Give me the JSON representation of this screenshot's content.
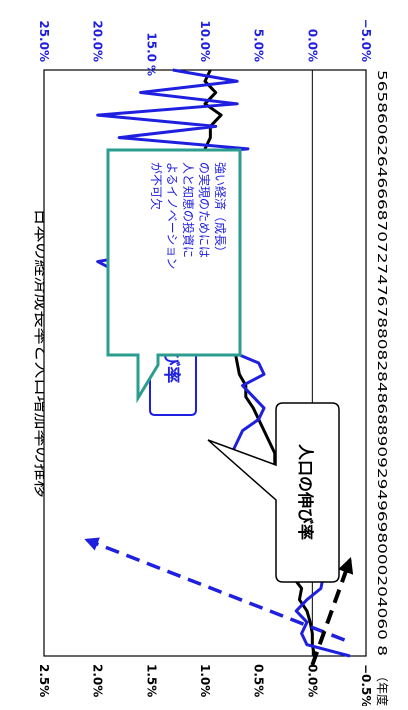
{
  "chart_data": {
    "type": "line",
    "title": "日本の経済成長率と人口増加率の推移",
    "x_tick_label_text": "56586062646668707274767880828486889092949698000204060 8",
    "x_unit": "（年度）",
    "x": [
      1956,
      1957,
      1958,
      1959,
      1960,
      1961,
      1962,
      1963,
      1964,
      1965,
      1966,
      1967,
      1968,
      1969,
      1970,
      1971,
      1972,
      1973,
      1974,
      1975,
      1976,
      1977,
      1978,
      1979,
      1980,
      1981,
      1982,
      1983,
      1984,
      1985,
      1986,
      1987,
      1988,
      1989,
      1990,
      1991,
      1992,
      1993,
      1994,
      1995,
      1996,
      1997,
      1998,
      1999,
      2000,
      2001,
      2002,
      2003,
      2004,
      2005,
      2006,
      2007,
      2008
    ],
    "left_axis": {
      "ticks": [
        "2.5%",
        "2.0%",
        "1.5%",
        "1.0%",
        "0.5%",
        "0.0%",
        "−0.5%"
      ],
      "ylim": [
        -0.5,
        2.5
      ]
    },
    "right_axis": {
      "ticks": [
        "25.0%",
        "20.0%",
        "15.0",
        "10.0%",
        "5.0%",
        "0.0%",
        "−5.0%"
      ],
      "unit": "%",
      "ylim": [
        -5,
        25
      ],
      "color": "#1f1fe0"
    },
    "series": [
      {
        "name": "人口の伸び率",
        "axis": "left",
        "color": "#000000",
        "values": [
          0.95,
          1.0,
          0.9,
          1.0,
          0.85,
          0.95,
          0.95,
          1.0,
          1.05,
          1.1,
          0.9,
          1.15,
          1.2,
          1.25,
          1.15,
          1.3,
          1.4,
          1.3,
          1.9,
          1.25,
          1.15,
          1.05,
          0.95,
          0.9,
          0.8,
          0.72,
          0.7,
          0.68,
          0.62,
          0.62,
          0.55,
          0.5,
          0.45,
          0.4,
          0.35,
          0.35,
          0.3,
          0.28,
          0.3,
          0.25,
          0.22,
          0.22,
          0.2,
          0.2,
          0.15,
          0.18,
          0.1,
          0.12,
          0.05,
          0.02,
          0.0,
          0.0,
          -0.02
        ]
      },
      {
        "name": "名目GDPの伸び率",
        "axis": "right",
        "color": "#1f1fe0",
        "values": [
          13.0,
          7.0,
          16.0,
          7.0,
          20.0,
          9.0,
          18.0,
          6.0,
          19.0,
          11.0,
          14.0,
          17.0,
          18.0,
          16.0,
          15.0,
          10.0,
          14.0,
          20.0,
          18.0,
          10.0,
          12.0,
          11.0,
          10.0,
          8.0,
          9.0,
          7.5,
          5.0,
          4.5,
          6.5,
          5.5,
          4.5,
          5.0,
          6.5,
          7.0,
          7.5,
          5.0,
          2.0,
          0.5,
          1.0,
          1.5,
          2.5,
          1.0,
          -1.0,
          0.0,
          1.0,
          -1.0,
          -0.8,
          0.5,
          1.5,
          0.5,
          1.0,
          0.5,
          -3.5
        ]
      }
    ],
    "annotations": {
      "gdp_label": "名目GDPの伸び率",
      "pop_label": "人口の伸び率",
      "callout": [
        "強い経済（成長）",
        "の実現のためには",
        "人と知恵の投資に",
        "よるイノベーション",
        "が不可欠"
      ]
    },
    "arrow_colors": {
      "gdp": "#1f1fe0",
      "pop": "#000000"
    },
    "callout_border": "#2a9d8f",
    "callout_text_color": "#1f1fe0",
    "grid": false
  }
}
